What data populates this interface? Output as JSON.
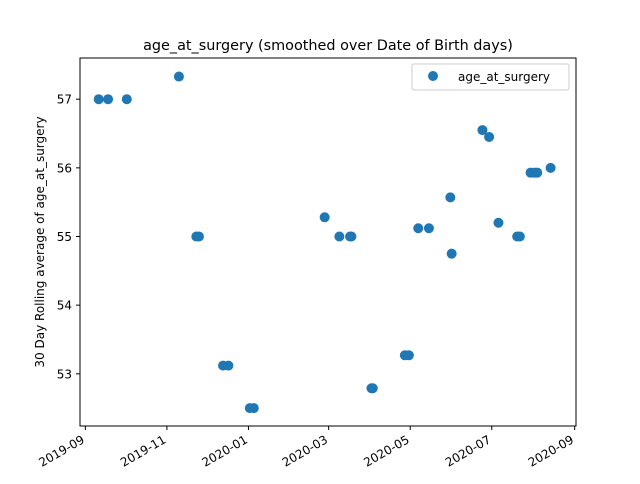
{
  "chart_data": {
    "type": "scatter",
    "title": "age_at_surgery (smoothed over Date of Birth days)",
    "xlabel": "",
    "ylabel": "30 Day Rolling average of age_at_surgery",
    "x_ticks": [
      "2019-09",
      "2019-11",
      "2020-01",
      "2020-03",
      "2020-05",
      "2020-07",
      "2020-09"
    ],
    "y_ticks": [
      "53",
      "54",
      "55",
      "56",
      "57"
    ],
    "xlim": [
      "2019-08-28",
      "2020-09-02"
    ],
    "ylim": [
      52.24,
      57.6
    ],
    "grid": false,
    "legend_position": "top-right",
    "marker_color": "#1f77b4",
    "series": [
      {
        "name": "age_at_surgery",
        "points": [
          {
            "x": "2019-09-11",
            "y": 57.0
          },
          {
            "x": "2019-09-18",
            "y": 57.0
          },
          {
            "x": "2019-10-02",
            "y": 57.0
          },
          {
            "x": "2019-11-10",
            "y": 57.33
          },
          {
            "x": "2019-11-23",
            "y": 55.0
          },
          {
            "x": "2019-11-25",
            "y": 55.0
          },
          {
            "x": "2019-12-13",
            "y": 53.12
          },
          {
            "x": "2019-12-17",
            "y": 53.12
          },
          {
            "x": "2020-01-02",
            "y": 52.5
          },
          {
            "x": "2020-01-05",
            "y": 52.5
          },
          {
            "x": "2020-02-27",
            "y": 55.28
          },
          {
            "x": "2020-03-09",
            "y": 55.0
          },
          {
            "x": "2020-03-17",
            "y": 55.0
          },
          {
            "x": "2020-03-18",
            "y": 55.0
          },
          {
            "x": "2020-04-02",
            "y": 52.79
          },
          {
            "x": "2020-04-03",
            "y": 52.79
          },
          {
            "x": "2020-04-27",
            "y": 53.27
          },
          {
            "x": "2020-04-30",
            "y": 53.27
          },
          {
            "x": "2020-05-07",
            "y": 55.12
          },
          {
            "x": "2020-05-15",
            "y": 55.12
          },
          {
            "x": "2020-05-31",
            "y": 55.57
          },
          {
            "x": "2020-06-01",
            "y": 54.75
          },
          {
            "x": "2020-06-24",
            "y": 56.55
          },
          {
            "x": "2020-06-29",
            "y": 56.45
          },
          {
            "x": "2020-07-06",
            "y": 55.2
          },
          {
            "x": "2020-07-20",
            "y": 55.0
          },
          {
            "x": "2020-07-22",
            "y": 55.0
          },
          {
            "x": "2020-07-30",
            "y": 55.93
          },
          {
            "x": "2020-08-02",
            "y": 55.93
          },
          {
            "x": "2020-08-04",
            "y": 55.93
          },
          {
            "x": "2020-08-14",
            "y": 56.0
          }
        ]
      }
    ]
  }
}
